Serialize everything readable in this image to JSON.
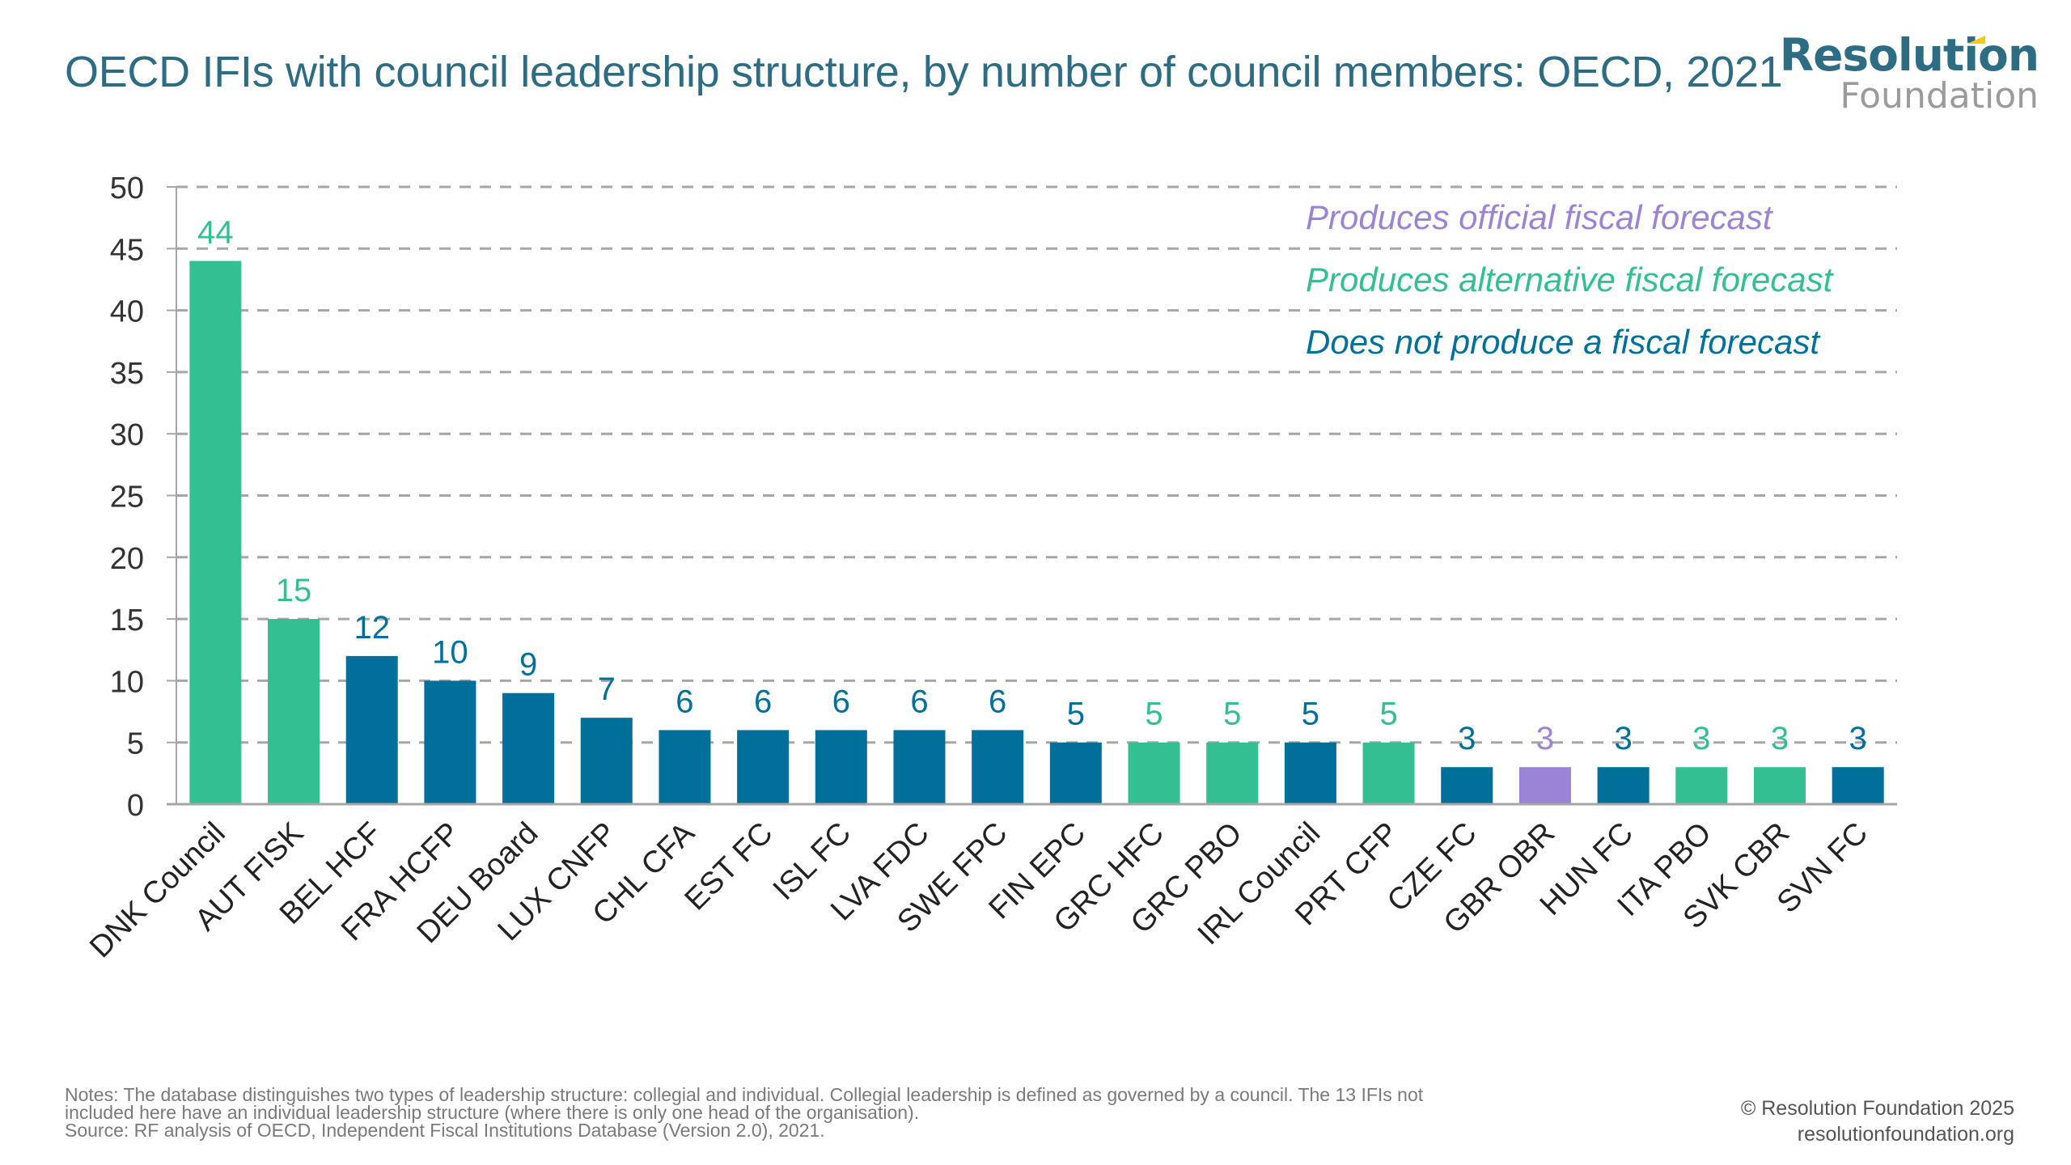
{
  "header": {
    "title": "OECD IFIs with council leadership structure, by number of council members: OECD, 2021",
    "logo_line1": "Resolution",
    "logo_line2": "Foundation"
  },
  "colors": {
    "official": "#9b84d6",
    "alternative": "#33bf92",
    "none": "#006f9a",
    "grid": "#a6a6a6",
    "axis": "#a6a6a6",
    "tick_text": "#333333"
  },
  "chart_data": {
    "type": "bar",
    "title": "OECD IFIs with council leadership structure, by number of council members: OECD, 2021",
    "xlabel": "",
    "ylabel": "",
    "ylim": [
      0,
      50
    ],
    "yticks": [
      0,
      5,
      10,
      15,
      20,
      25,
      30,
      35,
      40,
      45,
      50
    ],
    "grid": true,
    "legend_position": "top-right",
    "categories": [
      "DNK Council",
      "AUT FISK",
      "BEL HCF",
      "FRA HCFP",
      "DEU Board",
      "LUX CNFP",
      "CHL CFA",
      "EST FC",
      "ISL FC",
      "LVA FDC",
      "SWE FPC",
      "FIN EPC",
      "GRC HFC",
      "GRC PBO",
      "IRL Council",
      "PRT CFP",
      "CZE FC",
      "GBR OBR",
      "HUN FC",
      "ITA PBO",
      "SVK CBR",
      "SVN FC"
    ],
    "values": [
      44,
      15,
      12,
      10,
      9,
      7,
      6,
      6,
      6,
      6,
      6,
      5,
      5,
      5,
      5,
      5,
      3,
      3,
      3,
      3,
      3,
      3
    ],
    "forecast_type": [
      "alternative",
      "alternative",
      "none",
      "none",
      "none",
      "none",
      "none",
      "none",
      "none",
      "none",
      "none",
      "none",
      "alternative",
      "alternative",
      "none",
      "alternative",
      "none",
      "official",
      "none",
      "alternative",
      "alternative",
      "none"
    ],
    "legend": [
      {
        "key": "official",
        "label": "Produces official fiscal forecast"
      },
      {
        "key": "alternative",
        "label": "Produces alternative fiscal forecast"
      },
      {
        "key": "none",
        "label": "Does not produce a fiscal forecast"
      }
    ]
  },
  "footer": {
    "notes_line1": "Notes: The database distinguishes two types of leadership structure: collegial and individual. Collegial leadership is defined as governed by a council. The 13 IFIs not",
    "notes_line2": "included here have an individual leadership structure (where there is only one head of the organisation).",
    "source": "Source: RF analysis of OECD, Independent Fiscal Institutions Database (Version 2.0), 2021.",
    "copyright": "© Resolution Foundation 2025",
    "website": "resolutionfoundation.org"
  }
}
